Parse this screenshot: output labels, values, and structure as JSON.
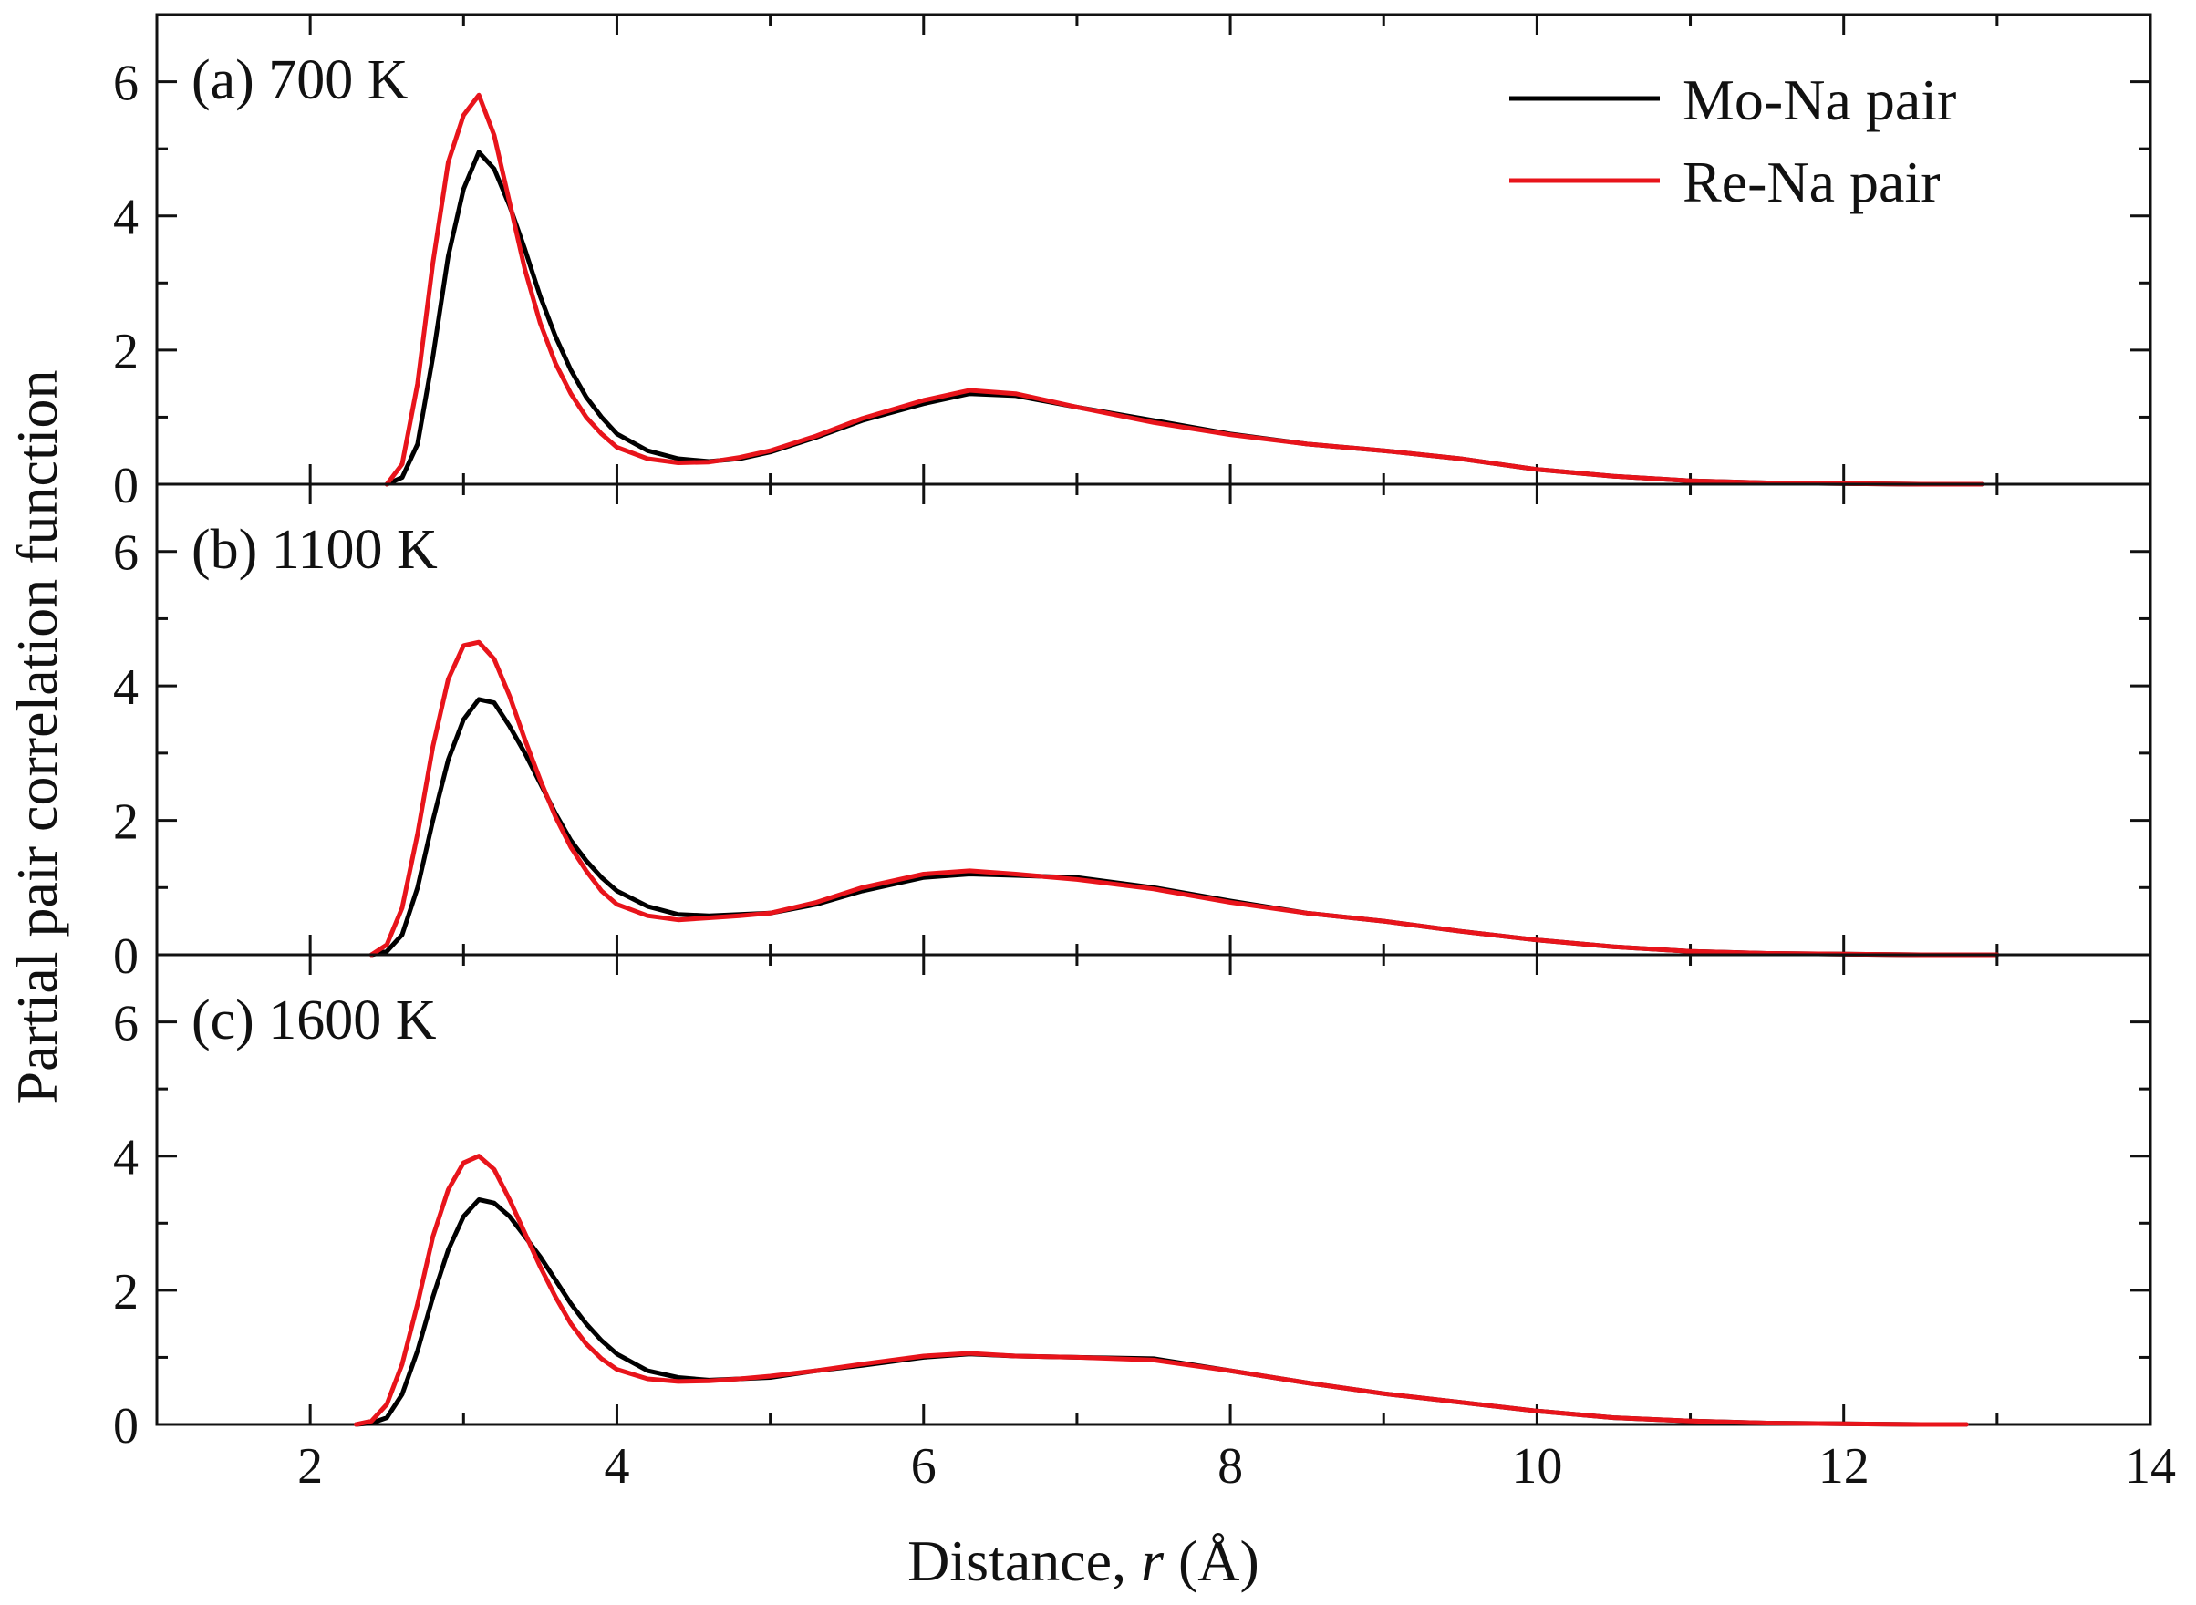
{
  "chart_data": {
    "type": "line",
    "xlabel_main": "Distance, ",
    "xlabel_var": "r",
    "xlabel_unit": " (Å)",
    "ylabel": "Partial pair correlation function",
    "xlim": [
      1,
      14
    ],
    "ylim": [
      0,
      7
    ],
    "xticks": [
      2,
      4,
      6,
      8,
      10,
      12,
      14
    ],
    "yticks": [
      0,
      2,
      4,
      6
    ],
    "legend": {
      "position": "top-right",
      "entries": [
        {
          "label": "Mo-Na pair",
          "color": "#000000"
        },
        {
          "label": "Re-Na pair",
          "color": "#e8141b"
        }
      ]
    },
    "panels": [
      {
        "label": "(a) 700 K",
        "series": [
          {
            "name": "Mo-Na pair",
            "color": "#000000",
            "x": [
              2.5,
              2.6,
              2.7,
              2.8,
              2.9,
              3.0,
              3.1,
              3.2,
              3.3,
              3.4,
              3.5,
              3.6,
              3.7,
              3.8,
              3.9,
              4.0,
              4.2,
              4.4,
              4.6,
              4.8,
              5.0,
              5.3,
              5.6,
              6.0,
              6.3,
              6.6,
              7.0,
              7.5,
              8.0,
              8.5,
              9.0,
              9.5,
              10.0,
              10.5,
              11.0,
              11.5,
              12.0,
              12.5,
              12.9
            ],
            "y": [
              0.0,
              0.1,
              0.6,
              1.9,
              3.4,
              4.4,
              4.95,
              4.7,
              4.15,
              3.5,
              2.8,
              2.2,
              1.7,
              1.3,
              1.0,
              0.75,
              0.5,
              0.38,
              0.34,
              0.38,
              0.48,
              0.7,
              0.95,
              1.2,
              1.35,
              1.32,
              1.15,
              0.95,
              0.75,
              0.6,
              0.5,
              0.38,
              0.22,
              0.12,
              0.05,
              0.02,
              0.01,
              0.0,
              0.0
            ]
          },
          {
            "name": "Re-Na pair",
            "color": "#e8141b",
            "x": [
              2.5,
              2.6,
              2.7,
              2.8,
              2.9,
              3.0,
              3.1,
              3.2,
              3.3,
              3.4,
              3.5,
              3.6,
              3.7,
              3.8,
              3.9,
              4.0,
              4.2,
              4.4,
              4.6,
              4.8,
              5.0,
              5.3,
              5.6,
              6.0,
              6.3,
              6.6,
              7.0,
              7.5,
              8.0,
              8.5,
              9.0,
              9.5,
              10.0,
              10.5,
              11.0,
              11.5,
              12.0,
              12.5,
              12.9
            ],
            "y": [
              0.0,
              0.3,
              1.5,
              3.3,
              4.8,
              5.5,
              5.8,
              5.2,
              4.2,
              3.2,
              2.4,
              1.8,
              1.35,
              1.0,
              0.75,
              0.55,
              0.38,
              0.32,
              0.33,
              0.4,
              0.5,
              0.72,
              0.98,
              1.25,
              1.4,
              1.35,
              1.15,
              0.92,
              0.74,
              0.6,
              0.5,
              0.38,
              0.22,
              0.12,
              0.05,
              0.02,
              0.01,
              0.0,
              0.0
            ]
          }
        ]
      },
      {
        "label": "(b) 1100 K",
        "series": [
          {
            "name": "Mo-Na pair",
            "color": "#000000",
            "x": [
              2.4,
              2.5,
              2.6,
              2.7,
              2.8,
              2.9,
              3.0,
              3.1,
              3.2,
              3.3,
              3.4,
              3.5,
              3.6,
              3.7,
              3.8,
              3.9,
              4.0,
              4.2,
              4.4,
              4.6,
              4.8,
              5.0,
              5.3,
              5.6,
              6.0,
              6.3,
              6.6,
              7.0,
              7.5,
              8.0,
              8.5,
              9.0,
              9.5,
              10.0,
              10.5,
              11.0,
              11.5,
              12.0,
              12.5,
              13.0
            ],
            "y": [
              0.0,
              0.05,
              0.3,
              1.0,
              2.0,
              2.9,
              3.5,
              3.8,
              3.75,
              3.4,
              3.0,
              2.55,
              2.1,
              1.7,
              1.4,
              1.15,
              0.95,
              0.72,
              0.6,
              0.58,
              0.6,
              0.62,
              0.75,
              0.95,
              1.15,
              1.2,
              1.18,
              1.15,
              1.0,
              0.8,
              0.62,
              0.5,
              0.35,
              0.22,
              0.12,
              0.05,
              0.02,
              0.01,
              0.0,
              0.0
            ]
          },
          {
            "name": "Re-Na pair",
            "color": "#e8141b",
            "x": [
              2.4,
              2.5,
              2.6,
              2.7,
              2.8,
              2.9,
              3.0,
              3.1,
              3.2,
              3.3,
              3.4,
              3.5,
              3.6,
              3.7,
              3.8,
              3.9,
              4.0,
              4.2,
              4.4,
              4.6,
              4.8,
              5.0,
              5.3,
              5.6,
              6.0,
              6.3,
              6.6,
              7.0,
              7.5,
              8.0,
              8.5,
              9.0,
              9.5,
              10.0,
              10.5,
              11.0,
              11.5,
              12.0,
              12.5,
              13.0
            ],
            "y": [
              0.0,
              0.15,
              0.7,
              1.8,
              3.1,
              4.1,
              4.6,
              4.65,
              4.4,
              3.85,
              3.2,
              2.6,
              2.05,
              1.6,
              1.25,
              0.95,
              0.75,
              0.58,
              0.52,
              0.55,
              0.58,
              0.62,
              0.78,
              1.0,
              1.2,
              1.25,
              1.2,
              1.12,
              0.98,
              0.78,
              0.62,
              0.5,
              0.35,
              0.22,
              0.12,
              0.05,
              0.02,
              0.01,
              0.0,
              0.0
            ]
          }
        ]
      },
      {
        "label": "(c) 1600 K",
        "series": [
          {
            "name": "Mo-Na pair",
            "color": "#000000",
            "x": [
              2.3,
              2.4,
              2.5,
              2.6,
              2.7,
              2.8,
              2.9,
              3.0,
              3.1,
              3.2,
              3.3,
              3.4,
              3.5,
              3.6,
              3.7,
              3.8,
              3.9,
              4.0,
              4.2,
              4.4,
              4.6,
              4.8,
              5.0,
              5.3,
              5.6,
              6.0,
              6.3,
              6.6,
              7.0,
              7.5,
              8.0,
              8.5,
              9.0,
              9.5,
              10.0,
              10.5,
              11.0,
              11.5,
              12.0,
              12.5,
              12.8
            ],
            "y": [
              0.0,
              0.02,
              0.1,
              0.45,
              1.1,
              1.9,
              2.6,
              3.1,
              3.35,
              3.3,
              3.1,
              2.8,
              2.5,
              2.15,
              1.8,
              1.5,
              1.25,
              1.05,
              0.8,
              0.7,
              0.66,
              0.68,
              0.7,
              0.8,
              0.88,
              1.0,
              1.05,
              1.02,
              1.0,
              0.98,
              0.8,
              0.62,
              0.46,
              0.33,
              0.2,
              0.1,
              0.05,
              0.02,
              0.01,
              0.0,
              0.0
            ]
          },
          {
            "name": "Re-Na pair",
            "color": "#e8141b",
            "x": [
              2.3,
              2.4,
              2.5,
              2.6,
              2.7,
              2.8,
              2.9,
              3.0,
              3.1,
              3.2,
              3.3,
              3.4,
              3.5,
              3.6,
              3.7,
              3.8,
              3.9,
              4.0,
              4.2,
              4.4,
              4.6,
              4.8,
              5.0,
              5.3,
              5.6,
              6.0,
              6.3,
              6.6,
              7.0,
              7.5,
              8.0,
              8.5,
              9.0,
              9.5,
              10.0,
              10.5,
              11.0,
              11.5,
              12.0,
              12.5,
              12.8
            ],
            "y": [
              0.0,
              0.05,
              0.3,
              0.9,
              1.8,
              2.8,
              3.5,
              3.9,
              4.0,
              3.8,
              3.35,
              2.85,
              2.35,
              1.9,
              1.5,
              1.2,
              0.98,
              0.82,
              0.68,
              0.64,
              0.65,
              0.68,
              0.72,
              0.8,
              0.9,
              1.02,
              1.06,
              1.02,
              1.0,
              0.96,
              0.8,
              0.62,
              0.46,
              0.33,
              0.2,
              0.1,
              0.05,
              0.02,
              0.01,
              0.0,
              0.0
            ]
          }
        ]
      }
    ]
  }
}
